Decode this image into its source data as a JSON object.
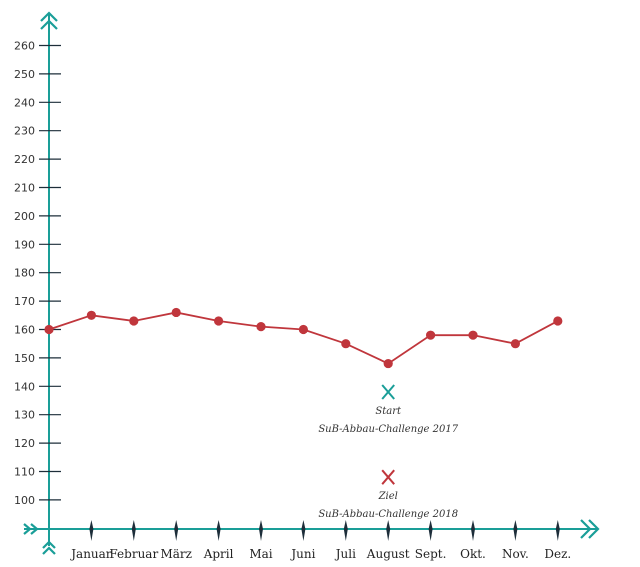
{
  "colors": {
    "axis": "#1a9e98",
    "line": "#c0363c",
    "point": "#c0363c",
    "tick": "#1d2e3a",
    "start_marker": "#1a9e98",
    "goal_marker": "#c0363c"
  },
  "chart_data": {
    "type": "line",
    "title": "",
    "xlabel": "",
    "ylabel": "",
    "x": [
      "",
      "Januar",
      "Februar",
      "März",
      "April",
      "Mai",
      "Juni",
      "Juli",
      "August",
      "Sept.",
      "Okt.",
      "Nov.",
      "Dez."
    ],
    "categories": [
      "Januar",
      "Februar",
      "März",
      "April",
      "Mai",
      "Juni",
      "Juli",
      "August",
      "Sept.",
      "Okt.",
      "Nov.",
      "Dez."
    ],
    "series": [
      {
        "values": [
          160,
          165,
          163,
          166,
          163,
          161,
          160,
          155,
          148,
          158,
          158,
          155,
          163
        ]
      }
    ],
    "ylim": [
      90,
      260
    ],
    "y_ticks": [
      "100",
      "110",
      "120",
      "130",
      "140",
      "150",
      "160",
      "170",
      "180",
      "190",
      "200",
      "210",
      "220",
      "230",
      "240",
      "250",
      "260"
    ],
    "grid": false,
    "annotations": [
      {
        "marker": "x",
        "x": "August",
        "y": 138,
        "lines": [
          "Start",
          "SuB-Abbau-Challenge 2017"
        ],
        "color_key": "start_marker"
      },
      {
        "marker": "x",
        "x": "August",
        "y": 108,
        "lines": [
          "Ziel",
          "SuB-Abbau-Challenge 2018"
        ],
        "color_key": "goal_marker"
      }
    ]
  }
}
